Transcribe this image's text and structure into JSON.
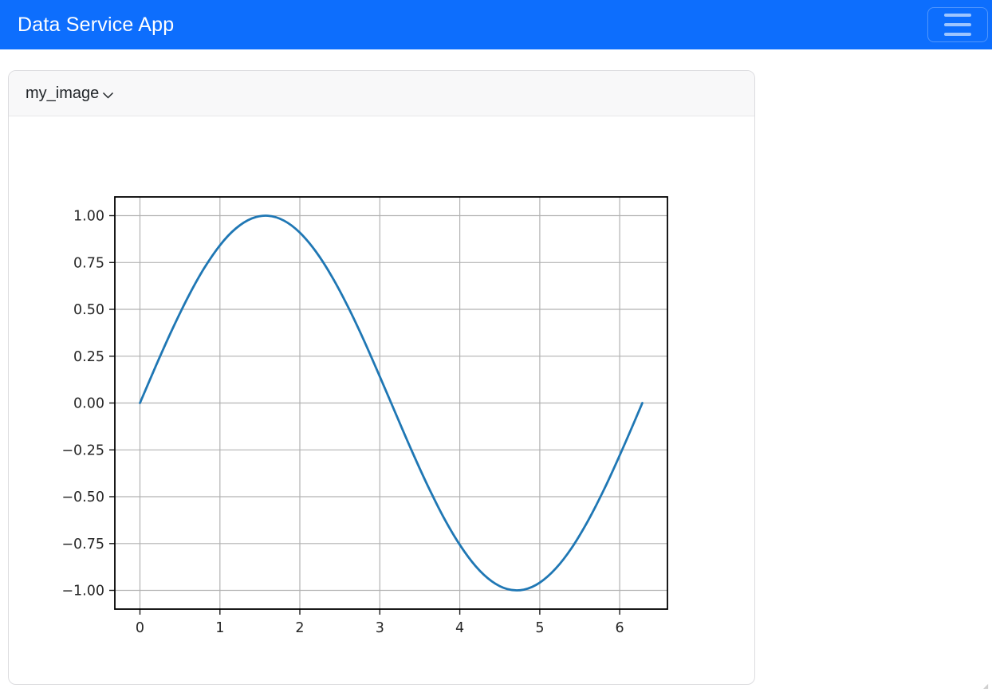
{
  "navbar": {
    "title": "Data Service App",
    "background_color": "#0d6efd",
    "menu_icon": "hamburger-icon"
  },
  "panel": {
    "title": "my_image",
    "toggle_icon": "chevron-down-icon",
    "header_background": "#f8f8f9"
  },
  "chart_data": {
    "type": "line",
    "title": "",
    "xlabel": "",
    "ylabel": "",
    "grid": true,
    "legend": false,
    "line_color": "#1f77b4",
    "grid_color": "#b2b2b2",
    "spine_color": "#000000",
    "tick_label_color": "#262626",
    "xlim": [
      -0.314,
      6.597
    ],
    "ylim": [
      -1.1,
      1.1
    ],
    "xticks": [
      0,
      1,
      2,
      3,
      4,
      5,
      6
    ],
    "xtick_labels": [
      "0",
      "1",
      "2",
      "3",
      "4",
      "5",
      "6"
    ],
    "yticks": [
      1.0,
      0.75,
      0.5,
      0.25,
      0.0,
      -0.25,
      -0.5,
      -0.75,
      -1.0
    ],
    "ytick_labels": [
      "1.00",
      "0.75",
      "0.50",
      "0.25",
      "0.00",
      "−0.25",
      "−0.50",
      "−0.75",
      "−1.00"
    ],
    "x": [
      0,
      0.2,
      0.4,
      0.6,
      0.8,
      1.0,
      1.2,
      1.4,
      1.6,
      1.8,
      2.0,
      2.2,
      2.4,
      2.6,
      2.8,
      3.0,
      3.2,
      3.4,
      3.6,
      3.8,
      4.0,
      4.2,
      4.4,
      4.6,
      4.8,
      5.0,
      5.2,
      5.4,
      5.6,
      5.8,
      6.0,
      6.2,
      6.283
    ],
    "y": [
      0,
      0.1987,
      0.3894,
      0.5646,
      0.7174,
      0.8415,
      0.932,
      0.9854,
      0.9996,
      0.9738,
      0.9093,
      0.8085,
      0.6755,
      0.5155,
      0.335,
      0.1411,
      -0.0584,
      -0.2555,
      -0.4425,
      -0.6119,
      -0.7568,
      -0.8716,
      -0.9516,
      -0.9937,
      -0.9962,
      -0.9589,
      -0.8835,
      -0.7728,
      -0.6313,
      -0.4646,
      -0.2794,
      -0.0831,
      0.0
    ]
  },
  "corner_mark": "resize-grip-icon"
}
